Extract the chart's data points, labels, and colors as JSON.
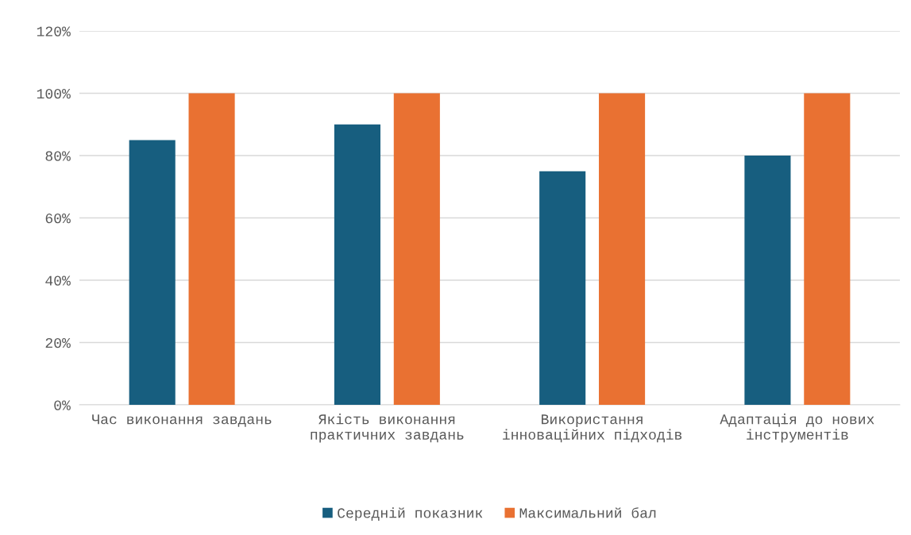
{
  "chart_data": {
    "type": "bar",
    "categories": [
      "Час виконання завдань",
      "Якість виконання практичних завдань",
      "Використання інноваційних підходів",
      "Адаптація до нових інструментів"
    ],
    "series": [
      {
        "name": "Середній показник",
        "color": "#175e7f",
        "values": [
          85,
          90,
          75,
          80
        ]
      },
      {
        "name": "Максимальний бал",
        "color": "#e97132",
        "values": [
          100,
          100,
          100,
          100
        ]
      }
    ],
    "ylim": [
      0,
      120
    ],
    "yticks": [
      {
        "value": 0,
        "label": "0%"
      },
      {
        "value": 20,
        "label": "20%"
      },
      {
        "value": 40,
        "label": "40%"
      },
      {
        "value": 60,
        "label": "60%"
      },
      {
        "value": 80,
        "label": "80%"
      },
      {
        "value": 100,
        "label": "100%"
      },
      {
        "value": 120,
        "label": "120%"
      }
    ],
    "grid": "y",
    "legend": "bottom"
  }
}
